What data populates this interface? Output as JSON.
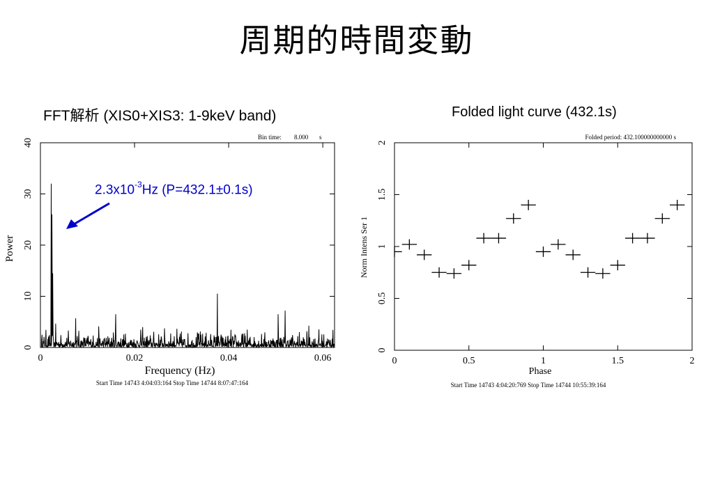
{
  "slide": {
    "title": "周期的時間変動"
  },
  "annotation": {
    "pre": "2.3x10",
    "exp": "-3",
    "post": "Hz (P=432.1±0.1s)",
    "color": "#0000cc"
  },
  "chart_data": [
    {
      "type": "line",
      "title": "FFT解析 (XIS0+XIS3: 1-9keV band)",
      "header_label": "Bin time:",
      "header_value": "8.000",
      "header_unit": "s",
      "xlabel": "Frequency (Hz)",
      "ylabel": "Power",
      "xlim": [
        0,
        0.0625
      ],
      "ylim": [
        0,
        40
      ],
      "xticks": [
        0,
        0.02,
        0.04,
        0.06
      ],
      "xtick_labels": [
        "0",
        "0.02",
        "0.04",
        "0.06"
      ],
      "yticks": [
        0,
        10,
        20,
        30,
        40
      ],
      "ytick_labels": [
        "0",
        "10",
        "20",
        "30",
        "40"
      ],
      "footer": "Start Time 14743  4:04:03:164    Stop Time 14744  8:07:47:164",
      "noise_level": [
        0,
        5
      ],
      "peaks": [
        {
          "x": 0.0023,
          "y": 32
        },
        {
          "x": 0.00245,
          "y": 26
        },
        {
          "x": 0.0026,
          "y": 14.5
        },
        {
          "x": 0.0075,
          "y": 5.7
        },
        {
          "x": 0.016,
          "y": 6.5
        },
        {
          "x": 0.0376,
          "y": 10.5
        },
        {
          "x": 0.052,
          "y": 7.2
        },
        {
          "x": 0.0505,
          "y": 6.5
        }
      ]
    },
    {
      "type": "scatter",
      "title": "Folded light curve (432.1s)",
      "header": "Folded period: 432.100000000000 s",
      "xlabel": "Phase",
      "ylabel": "Norm Intens Ser  1",
      "xlim": [
        0,
        2
      ],
      "ylim": [
        0,
        2
      ],
      "xticks": [
        0,
        0.5,
        1,
        1.5,
        2
      ],
      "xtick_labels": [
        "0",
        "0.5",
        "1",
        "1.5",
        "2"
      ],
      "yticks": [
        0,
        0.5,
        1,
        1.5,
        2
      ],
      "ytick_labels": [
        "0",
        "0.5",
        "1",
        "1.5",
        "2"
      ],
      "footer": "Start Time 14743  4:04:20:769    Stop Time 14744 10:55:39:164",
      "x": [
        0.0,
        0.1,
        0.2,
        0.3,
        0.4,
        0.5,
        0.6,
        0.7,
        0.8,
        0.9,
        1.0,
        1.1,
        1.2,
        1.3,
        1.4,
        1.5,
        1.6,
        1.7,
        1.8,
        1.9
      ],
      "y": [
        0.95,
        1.02,
        0.92,
        0.75,
        0.74,
        0.82,
        1.08,
        1.08,
        1.27,
        1.4,
        0.95,
        1.02,
        0.92,
        0.75,
        0.74,
        0.82,
        1.08,
        1.08,
        1.27,
        1.4
      ],
      "x_halfwidth": 0.05,
      "y_error": 0.05
    }
  ]
}
